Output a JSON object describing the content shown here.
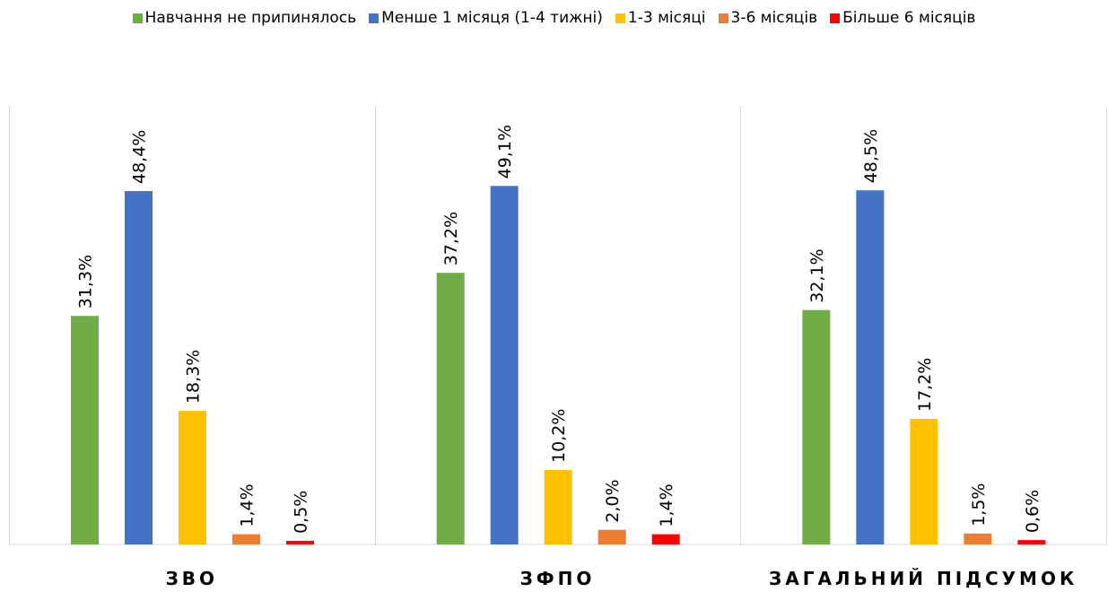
{
  "chart_data": {
    "type": "bar",
    "categories": [
      "ЗВО",
      "ЗФПО",
      "ЗАГАЛЬНИЙ ПІДСУМОК"
    ],
    "series": [
      {
        "name": "Навчання не припинялось",
        "color": "#70ad47",
        "values": [
          31.3,
          37.2,
          32.1
        ],
        "labels": [
          "31,3%",
          "37,2%",
          "32,1%"
        ]
      },
      {
        "name": "Менше 1 місяця (1-4 тижні)",
        "color": "#4472c4",
        "values": [
          48.4,
          49.1,
          48.5
        ],
        "labels": [
          "48,4%",
          "49,1%",
          "48,5%"
        ]
      },
      {
        "name": "1-3 місяці",
        "color": "#ffc000",
        "values": [
          18.3,
          10.2,
          17.2
        ],
        "labels": [
          "18,3%",
          "10,2%",
          "17,2%"
        ]
      },
      {
        "name": "3-6 місяців",
        "color": "#ed7d31",
        "values": [
          1.4,
          2.0,
          1.5
        ],
        "labels": [
          "1,4%",
          "2,0%",
          "1,5%"
        ]
      },
      {
        "name": "Більше 6 місяців",
        "color": "#ff0000",
        "values": [
          0.5,
          1.4,
          0.6
        ],
        "labels": [
          "0,5%",
          "1,4%",
          "0,6%"
        ]
      }
    ],
    "ylim": [
      0,
      60
    ],
    "grid": false,
    "legend_position": "top"
  }
}
